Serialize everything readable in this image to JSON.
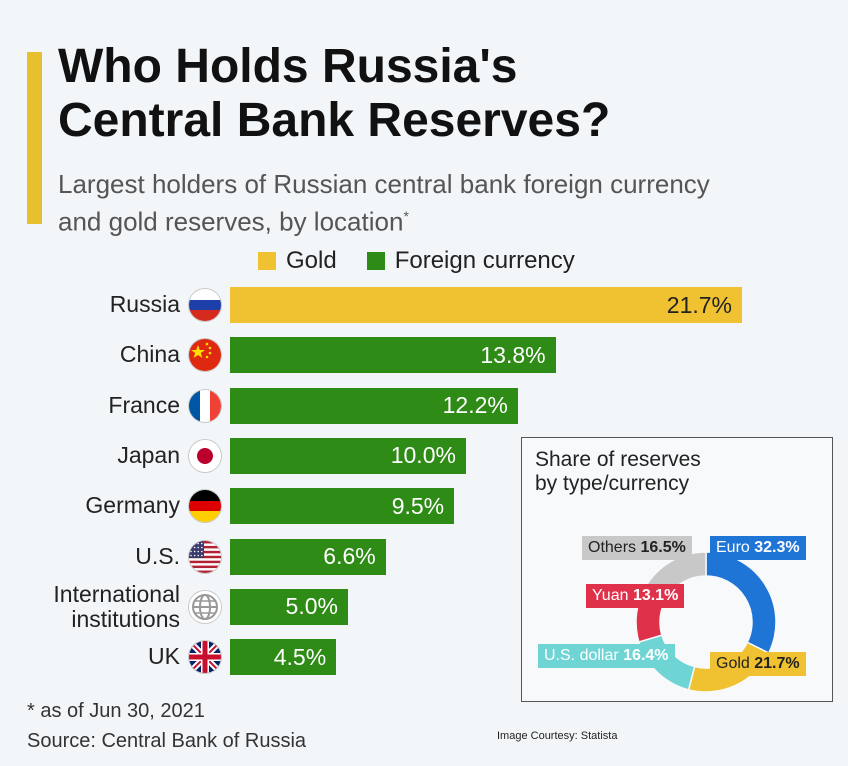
{
  "header": {
    "title_line1": "Who Holds Russia's",
    "title_line2": "Central Bank Reserves?",
    "subtitle_line1": "Largest holders of Russian central bank foreign currency",
    "subtitle_line2": "and gold reserves, by location",
    "subtitle_mark": "*"
  },
  "colors": {
    "accent": "#e8bf2f",
    "gold": "#f0c232",
    "foreign_currency": "#2e8b16"
  },
  "chart_data": [
    {
      "type": "bar",
      "orientation": "horizontal",
      "title": "",
      "legend": [
        {
          "name": "Gold",
          "color": "#f0c232"
        },
        {
          "name": "Foreign currency",
          "color": "#2e8b16"
        }
      ],
      "categories": [
        "Russia",
        "China",
        "France",
        "Japan",
        "Germany",
        "U.S.",
        "International institutions",
        "UK"
      ],
      "values": [
        21.7,
        13.8,
        12.2,
        10.0,
        9.5,
        6.6,
        5.0,
        4.5
      ],
      "value_labels": [
        "21.7%",
        "13.8%",
        "12.2%",
        "10.0%",
        "9.5%",
        "6.6%",
        "5.0%",
        "4.5%"
      ],
      "series_of_bar": [
        "Gold",
        "Foreign currency",
        "Foreign currency",
        "Foreign currency",
        "Foreign currency",
        "Foreign currency",
        "Foreign currency",
        "Foreign currency"
      ],
      "flags": [
        "russia-flag-icon",
        "china-flag-icon",
        "france-flag-icon",
        "japan-flag-icon",
        "germany-flag-icon",
        "us-flag-icon",
        "globe-icon",
        "uk-flag-icon"
      ],
      "xlim": [
        0,
        21.7
      ]
    },
    {
      "type": "pie",
      "variant": "donut",
      "title": "Share of reserves by type/currency",
      "title_line1": "Share of reserves",
      "title_line2": "by type/currency",
      "slices": [
        {
          "name": "Euro",
          "value": 32.3,
          "label": "32.3%",
          "color": "#1f75d6"
        },
        {
          "name": "Gold",
          "value": 21.7,
          "label": "21.7%",
          "color": "#f0c232"
        },
        {
          "name": "U.S. dollar",
          "value": 16.4,
          "label": "16.4%",
          "color": "#6fd4d4"
        },
        {
          "name": "Yuan",
          "value": 13.1,
          "label": "13.1%",
          "color": "#e0314a"
        },
        {
          "name": "Others",
          "value": 16.5,
          "label": "16.5%",
          "color": "#c8c8c8"
        }
      ]
    }
  ],
  "footer": {
    "footnote": "* as of Jun 30, 2021",
    "source": "Source: Central Bank of Russia",
    "credit": "Image Courtesy: Statista"
  }
}
